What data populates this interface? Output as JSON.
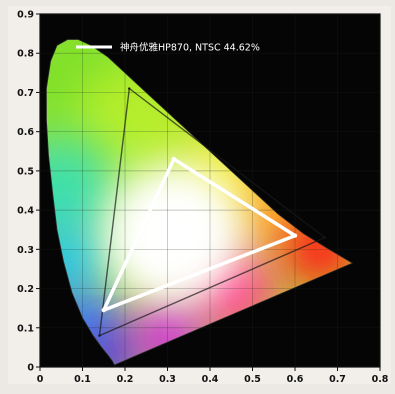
{
  "chart_data": {
    "type": "scatter",
    "title": "",
    "xlabel": "",
    "ylabel": "",
    "xlim": [
      0,
      0.8
    ],
    "ylim": [
      0,
      0.9
    ],
    "x_ticks": [
      "0",
      "0.1",
      "0.2",
      "0.3",
      "0.4",
      "0.5",
      "0.6",
      "0.7",
      "0.8"
    ],
    "y_ticks": [
      "0",
      "0.1",
      "0.2",
      "0.3",
      "0.4",
      "0.5",
      "0.6",
      "0.7",
      "0.8",
      "0.9"
    ],
    "grid": true,
    "legend_position": "top",
    "legend": [
      {
        "label": "神舟优雅HP870, NTSC 44.62%",
        "color": "#ffffff"
      }
    ],
    "series": [
      {
        "name": "神舟优雅HP870, NTSC 44.62%",
        "kind": "gamut-triangle",
        "color": "#ffffff",
        "points": [
          {
            "x": 0.15,
            "y": 0.145
          },
          {
            "x": 0.315,
            "y": 0.53
          },
          {
            "x": 0.6,
            "y": 0.335
          }
        ]
      },
      {
        "name": "",
        "kind": "reference-triangle",
        "color": "#1a1a1a",
        "points": [
          {
            "x": 0.14,
            "y": 0.08
          },
          {
            "x": 0.21,
            "y": 0.71
          },
          {
            "x": 0.67,
            "y": 0.33
          }
        ]
      }
    ],
    "locus": [
      [
        0.175,
        0.005
      ],
      [
        0.17,
        0.015
      ],
      [
        0.16,
        0.03
      ],
      [
        0.145,
        0.05
      ],
      [
        0.125,
        0.08
      ],
      [
        0.1,
        0.125
      ],
      [
        0.075,
        0.19
      ],
      [
        0.055,
        0.27
      ],
      [
        0.04,
        0.35
      ],
      [
        0.03,
        0.44
      ],
      [
        0.02,
        0.54
      ],
      [
        0.015,
        0.63
      ],
      [
        0.015,
        0.71
      ],
      [
        0.025,
        0.78
      ],
      [
        0.04,
        0.82
      ],
      [
        0.065,
        0.835
      ],
      [
        0.09,
        0.835
      ],
      [
        0.12,
        0.82
      ],
      [
        0.16,
        0.79
      ],
      [
        0.2,
        0.75
      ],
      [
        0.26,
        0.69
      ],
      [
        0.32,
        0.63
      ],
      [
        0.38,
        0.57
      ],
      [
        0.44,
        0.51
      ],
      [
        0.5,
        0.45
      ],
      [
        0.56,
        0.39
      ],
      [
        0.62,
        0.34
      ],
      [
        0.68,
        0.3
      ],
      [
        0.735,
        0.265
      ]
    ]
  }
}
